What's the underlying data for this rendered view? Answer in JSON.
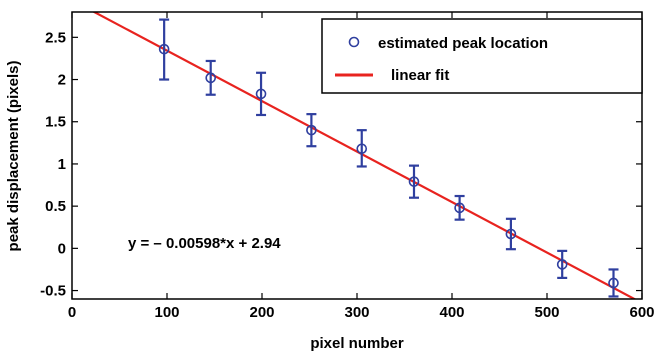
{
  "chart_data": {
    "type": "scatter",
    "xlabel": "pixel number",
    "ylabel": "peak displacement (pixels)",
    "xlim": [
      0,
      600
    ],
    "ylim": [
      -0.6,
      2.8
    ],
    "x_ticks": [
      0,
      100,
      200,
      300,
      400,
      500,
      600
    ],
    "x_tick_labels": [
      "0",
      "100",
      "200",
      "300",
      "400",
      "500",
      "600"
    ],
    "y_ticks": [
      -0.5,
      0,
      0.5,
      1,
      1.5,
      2,
      2.5
    ],
    "y_tick_labels": [
      "-0.5",
      "0",
      "0.5",
      "1",
      "1.5",
      "2",
      "2.5"
    ],
    "grid": false,
    "legend_position": "top-right",
    "series": [
      {
        "name": "estimated peak location",
        "kind": "errorbar-markers",
        "color": "#2f3f9f",
        "marker": "circle-open",
        "x": [
          97,
          146,
          199,
          252,
          305,
          360,
          408,
          462,
          516,
          570
        ],
        "y": [
          2.36,
          2.02,
          1.83,
          1.4,
          1.18,
          0.79,
          0.48,
          0.17,
          -0.19,
          -0.41
        ],
        "err_low": [
          0.36,
          0.2,
          0.25,
          0.19,
          0.21,
          0.19,
          0.14,
          0.18,
          0.16,
          0.16
        ],
        "err_high": [
          0.35,
          0.2,
          0.25,
          0.19,
          0.22,
          0.19,
          0.14,
          0.18,
          0.16,
          0.16
        ]
      },
      {
        "name": "linear fit",
        "kind": "line",
        "color": "#e8231f",
        "slope": -0.00598,
        "intercept": 2.94,
        "x": [
          0,
          600
        ]
      }
    ],
    "annotations": [
      {
        "text": "y = – 0.00598*x + 2.94",
        "x": 55,
        "y": 0.15
      }
    ]
  }
}
